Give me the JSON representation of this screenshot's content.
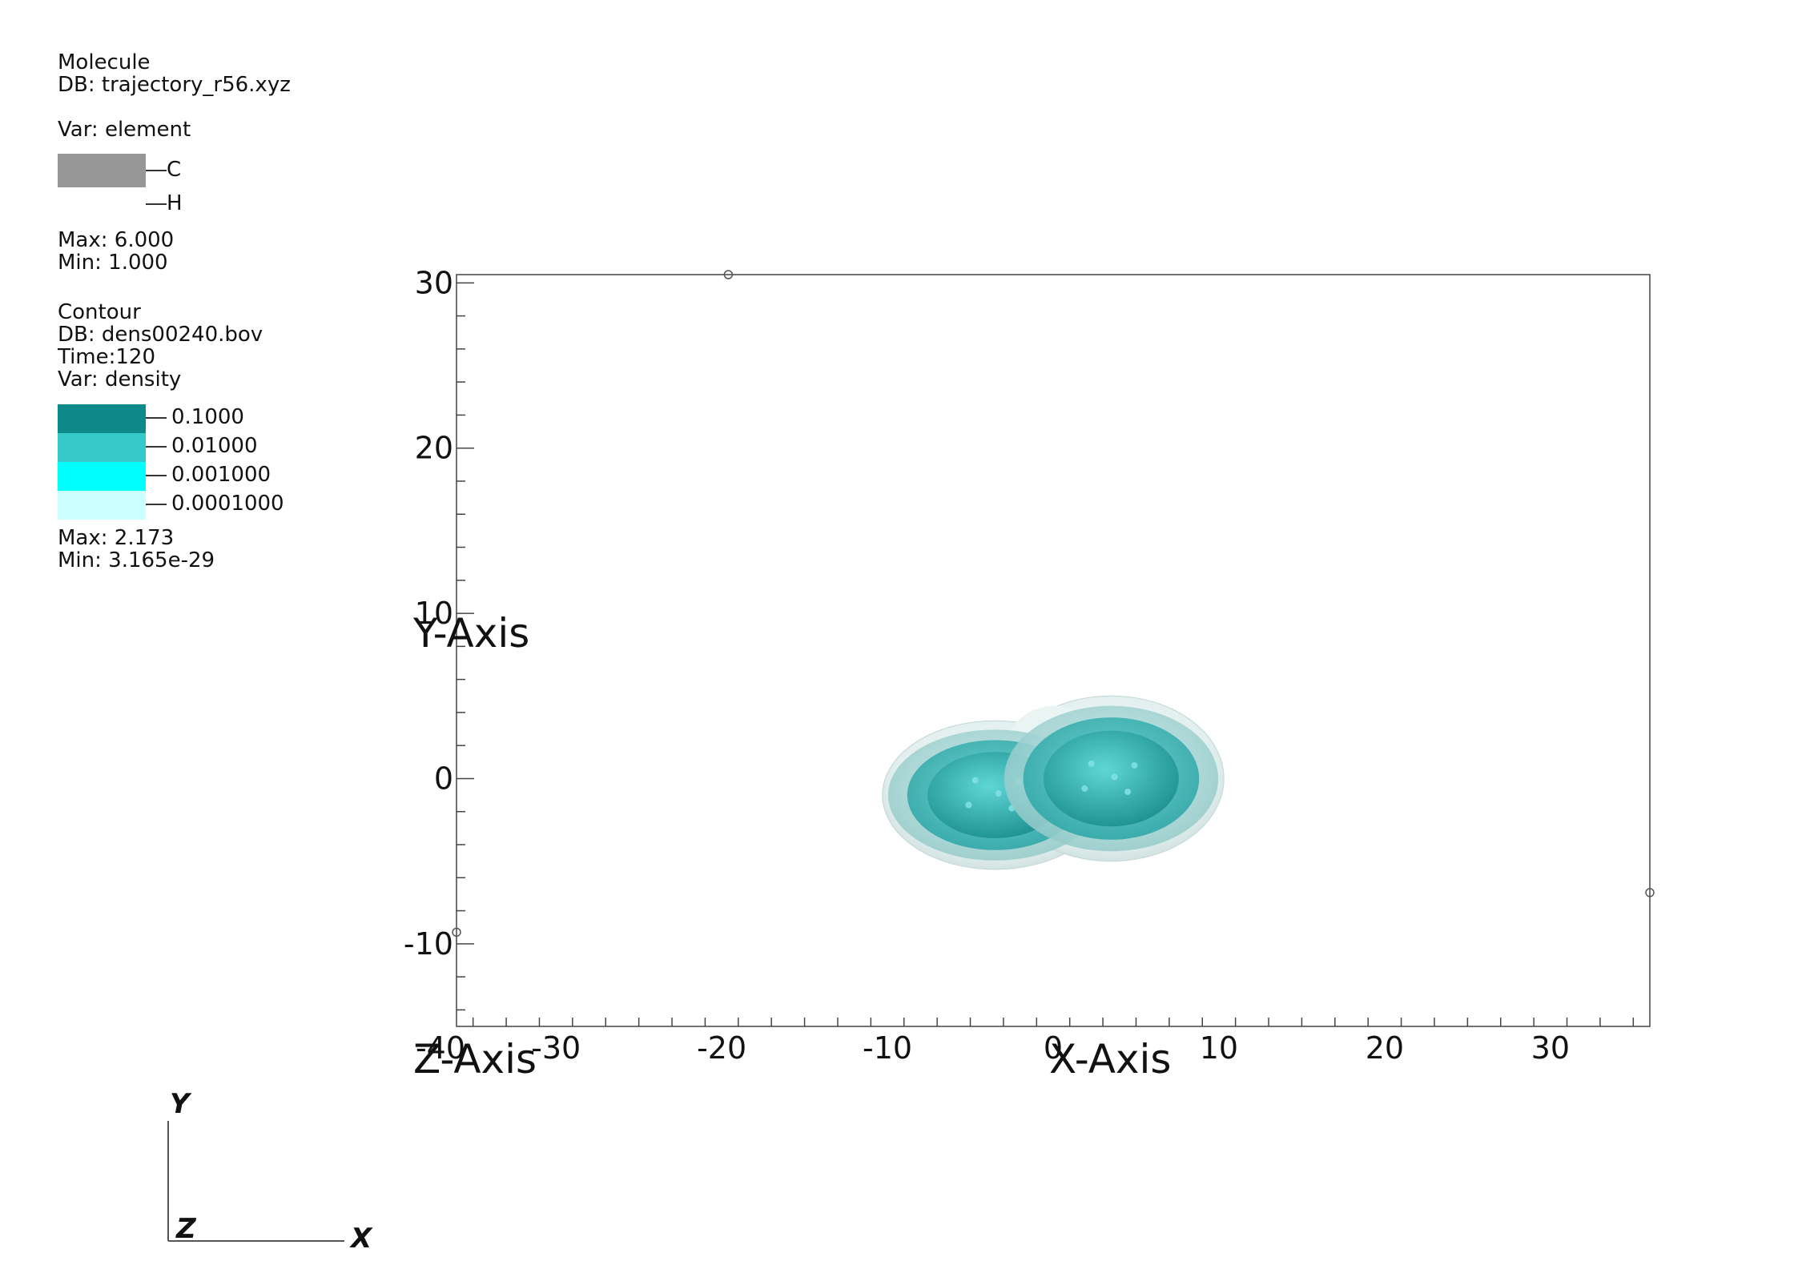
{
  "molecule_legend": {
    "title": "Molecule",
    "db": "DB: trajectory_r56.xyz",
    "var": "Var: element",
    "entries": [
      {
        "label": "C",
        "color": "#969696"
      },
      {
        "label": "H",
        "color": "#ffffff"
      }
    ],
    "max": "Max:  6.000",
    "min": "Min:  1.000"
  },
  "contour_legend": {
    "title": "Contour",
    "db": "DB: dens00240.bov",
    "time": "Time:120",
    "var": "Var: density",
    "levels": [
      {
        "label": "0.1000",
        "color": "#0e8a8a"
      },
      {
        "label": "0.01000",
        "color": "#35c9c9"
      },
      {
        "label": "0.001000",
        "color": "#00ffff"
      },
      {
        "label": "0.0001000",
        "color": "#ccffff"
      }
    ],
    "max": "Max:  2.173",
    "min": "Min:  3.165e-29"
  },
  "chart_data": {
    "type": "contour",
    "xlabel": "X-Axis",
    "ylabel": "Y-Axis",
    "zlabel": "Z-Axis",
    "xlim": [
      -36,
      36
    ],
    "ylim": [
      -15,
      30.5
    ],
    "x_ticks": [
      "-40",
      "-30",
      "-20",
      "-10",
      "0",
      "10",
      "20",
      "30"
    ],
    "y_ticks": [
      "-10",
      "0",
      "10",
      "20",
      "30"
    ],
    "blobs": [
      {
        "cx": -3.5,
        "cy": -1.0,
        "rx": 6.8,
        "ry": 4.5
      },
      {
        "cx": 3.5,
        "cy": 0.0,
        "rx": 6.8,
        "ry": 5.0
      }
    ]
  },
  "triad": {
    "y": "Y",
    "z": "Z",
    "x": "X"
  }
}
